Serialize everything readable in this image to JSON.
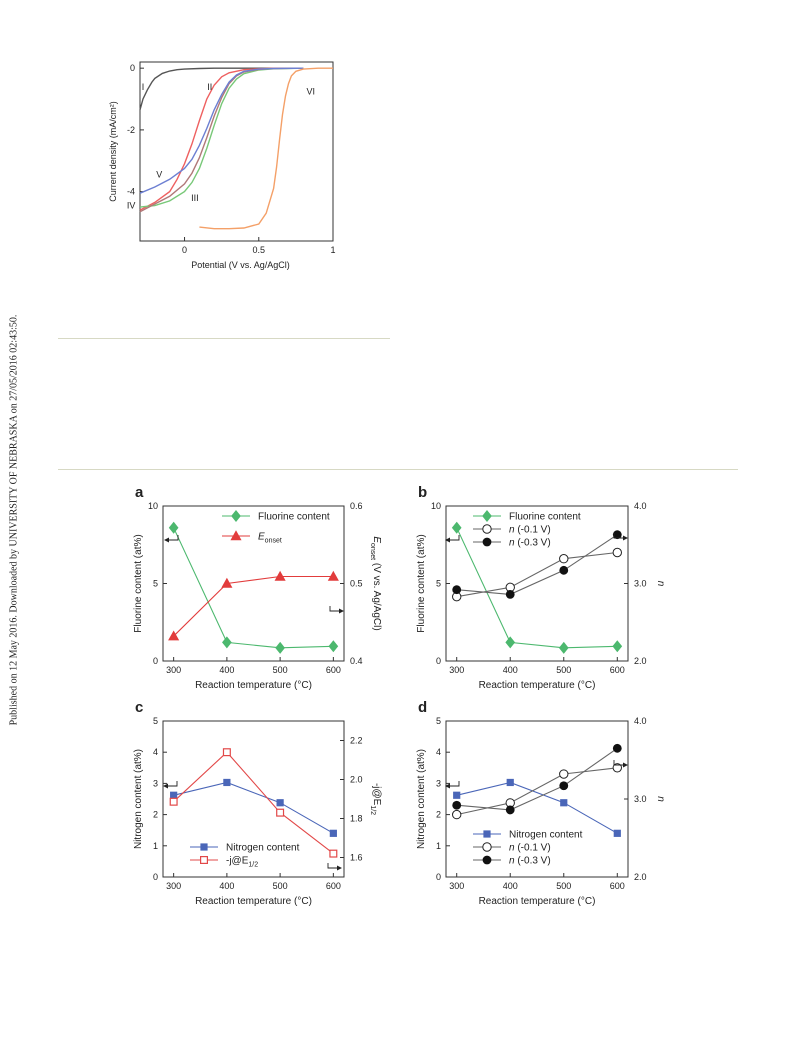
{
  "side_note": "Published on 12 May 2016. Downloaded by UNIVERSITY OF NEBRASKA on 27/05/2016 02:43:50.",
  "chart_data": [
    {
      "id": "top",
      "type": "line",
      "title": "",
      "xlabel": "Potential (V vs. Ag/AgCl)",
      "ylabel": "Current density (mA/cm²)",
      "xlim": [
        -0.3,
        1.0
      ],
      "ylim": [
        -5.6,
        0.2
      ],
      "xticks": [
        0,
        0.5,
        1
      ],
      "xtick_labels": [
        "0",
        "0.5",
        "1"
      ],
      "yticks": [
        0,
        -2,
        -4
      ],
      "ytick_labels": [
        "0",
        "-2",
        "-4"
      ],
      "series": [
        {
          "name": "I",
          "color": "#555555",
          "x": [
            -0.3,
            -0.28,
            -0.25,
            -0.22,
            -0.2,
            -0.15,
            -0.1,
            -0.05,
            0,
            0.1,
            0.2,
            0.3,
            0.5,
            0.8
          ],
          "y": [
            -1.35,
            -1.0,
            -0.7,
            -0.45,
            -0.33,
            -0.17,
            -0.09,
            -0.05,
            -0.03,
            -0.01,
            0,
            0,
            0,
            0
          ]
        },
        {
          "name": "II",
          "color": "#ee6060",
          "x": [
            -0.3,
            -0.2,
            -0.1,
            -0.05,
            0,
            0.05,
            0.1,
            0.15,
            0.2,
            0.25,
            0.3,
            0.4,
            0.5,
            0.6,
            0.8
          ],
          "y": [
            -4.6,
            -4.35,
            -4.0,
            -3.6,
            -3.1,
            -2.45,
            -1.7,
            -1.0,
            -0.55,
            -0.28,
            -0.15,
            -0.05,
            -0.02,
            0,
            0
          ]
        },
        {
          "name": "III",
          "color": "#78c878",
          "x": [
            -0.3,
            -0.2,
            -0.1,
            0,
            0.05,
            0.1,
            0.15,
            0.2,
            0.25,
            0.3,
            0.35,
            0.4,
            0.5,
            0.6,
            0.8
          ],
          "y": [
            -4.5,
            -4.45,
            -4.3,
            -4.0,
            -3.7,
            -3.25,
            -2.6,
            -1.85,
            -1.15,
            -0.65,
            -0.35,
            -0.18,
            -0.06,
            -0.02,
            0
          ]
        },
        {
          "name": "IV",
          "color": "#b07878",
          "x": [
            -0.3,
            -0.2,
            -0.1,
            0,
            0.05,
            0.1,
            0.15,
            0.2,
            0.25,
            0.3,
            0.35,
            0.4,
            0.5,
            0.6,
            0.8
          ],
          "y": [
            -4.65,
            -4.4,
            -4.15,
            -3.75,
            -3.4,
            -2.9,
            -2.25,
            -1.55,
            -0.95,
            -0.5,
            -0.25,
            -0.12,
            -0.04,
            -0.01,
            0
          ]
        },
        {
          "name": "V",
          "color": "#6c7fd2",
          "x": [
            -0.3,
            -0.2,
            -0.1,
            0,
            0.05,
            0.1,
            0.15,
            0.2,
            0.25,
            0.3,
            0.35,
            0.4,
            0.5,
            0.6,
            0.8
          ],
          "y": [
            -4.05,
            -3.85,
            -3.6,
            -3.25,
            -2.95,
            -2.5,
            -1.95,
            -1.35,
            -0.85,
            -0.45,
            -0.22,
            -0.1,
            -0.03,
            -0.01,
            0
          ]
        },
        {
          "name": "VI",
          "color": "#f4a068",
          "x": [
            0.1,
            0.2,
            0.3,
            0.4,
            0.5,
            0.55,
            0.6,
            0.62,
            0.64,
            0.66,
            0.68,
            0.7,
            0.72,
            0.75,
            0.8,
            0.9,
            1.0
          ],
          "y": [
            -5.15,
            -5.2,
            -5.2,
            -5.18,
            -5.05,
            -4.7,
            -3.9,
            -3.2,
            -2.3,
            -1.5,
            -0.9,
            -0.5,
            -0.25,
            -0.1,
            -0.03,
            0,
            0
          ]
        }
      ],
      "labels": [
        {
          "text": "I",
          "x": -0.28,
          "y": -0.7
        },
        {
          "text": "II",
          "x": 0.17,
          "y": -0.7
        },
        {
          "text": "III",
          "x": 0.07,
          "y": -4.3
        },
        {
          "text": "IV",
          "x": -0.36,
          "y": -4.55
        },
        {
          "text": "V",
          "x": -0.17,
          "y": -3.55
        },
        {
          "text": "VI",
          "x": 0.85,
          "y": -0.85
        }
      ]
    },
    {
      "id": "a",
      "type": "line",
      "panel_label": "a",
      "title": "",
      "xlabel": "Reaction temperature (°C)",
      "ylabel": "Fluorine content (at%)",
      "ylabel_right": "E_onset (V vs. Ag/AgCl)",
      "categories": [
        300,
        400,
        500,
        600
      ],
      "xlim": [
        280,
        620
      ],
      "ylim": [
        0,
        10
      ],
      "ylim_right": [
        0.4,
        0.6
      ],
      "yticks": [
        0,
        5,
        10
      ],
      "yticks_right": [
        0.4,
        0.5,
        0.6
      ],
      "ytick_labels_right": [
        "0.4",
        "0.5",
        "0.6"
      ],
      "series": [
        {
          "name": "Fluorine content",
          "axis": "left",
          "marker": "diamond",
          "color": "#4cb86e",
          "values": [
            8.6,
            1.2,
            0.85,
            0.95
          ]
        },
        {
          "name": "E_onset",
          "axis": "right",
          "marker": "triangle",
          "color": "#e23c3c",
          "values": [
            0.432,
            0.5,
            0.509,
            0.509
          ]
        }
      ]
    },
    {
      "id": "b",
      "type": "line",
      "panel_label": "b",
      "title": "",
      "xlabel": "Reaction temperature (°C)",
      "ylabel": "Fluorine content (at%)",
      "ylabel_right": "n",
      "categories": [
        300,
        400,
        500,
        600
      ],
      "xlim": [
        280,
        620
      ],
      "ylim": [
        0,
        10
      ],
      "ylim_right": [
        2.0,
        4.0
      ],
      "yticks": [
        0,
        5,
        10
      ],
      "yticks_right": [
        2.0,
        3.0,
        4.0
      ],
      "ytick_labels_right": [
        "2.0",
        "3.0",
        "4.0"
      ],
      "series": [
        {
          "name": "Fluorine content",
          "axis": "left",
          "marker": "diamond",
          "color": "#4cb86e",
          "values": [
            8.6,
            1.2,
            0.85,
            0.95
          ]
        },
        {
          "name": "n (-0.1 V)",
          "axis": "right",
          "marker": "open-circle",
          "color": "#666666",
          "values": [
            2.83,
            2.95,
            3.32,
            3.4
          ]
        },
        {
          "name": "n (-0.3 V)",
          "axis": "right",
          "marker": "filled-circle",
          "color": "#666666",
          "values": [
            2.92,
            2.86,
            3.17,
            3.63
          ]
        }
      ]
    },
    {
      "id": "c",
      "type": "line",
      "panel_label": "c",
      "title": "",
      "xlabel": "Reaction temperature (°C)",
      "ylabel": "Nitrogen content (at%)",
      "ylabel_right": "-j@E1/2",
      "categories": [
        300,
        400,
        500,
        600
      ],
      "xlim": [
        280,
        620
      ],
      "ylim": [
        0,
        5
      ],
      "ylim_right": [
        1.5,
        2.3
      ],
      "yticks": [
        0,
        1,
        2,
        3,
        4,
        5
      ],
      "yticks_right": [
        1.6,
        1.8,
        2.0,
        2.2
      ],
      "ytick_labels_right": [
        "1.6",
        "1.8",
        "2.0",
        "2.2"
      ],
      "series": [
        {
          "name": "Nitrogen content",
          "axis": "left",
          "marker": "filled-square",
          "color": "#4a66b8",
          "values": [
            2.62,
            3.03,
            2.38,
            1.4
          ]
        },
        {
          "name": "-j@E1/2",
          "axis": "right",
          "marker": "open-square",
          "color": "#e24848",
          "values": [
            1.886,
            2.14,
            1.83,
            1.62
          ]
        }
      ]
    },
    {
      "id": "d",
      "type": "line",
      "panel_label": "d",
      "title": "",
      "xlabel": "Reaction temperature (°C)",
      "ylabel": "Nitrogen content (at%)",
      "ylabel_right": "n",
      "categories": [
        300,
        400,
        500,
        600
      ],
      "xlim": [
        280,
        620
      ],
      "ylim": [
        0,
        5
      ],
      "ylim_right": [
        2.0,
        4.0
      ],
      "yticks": [
        0,
        1,
        2,
        3,
        4,
        5
      ],
      "yticks_right": [
        2.0,
        3.0,
        4.0
      ],
      "ytick_labels_right": [
        "2.0",
        "3.0",
        "4.0"
      ],
      "series": [
        {
          "name": "Nitrogen content",
          "axis": "left",
          "marker": "filled-square",
          "color": "#4a66b8",
          "values": [
            2.62,
            3.03,
            2.38,
            1.4
          ]
        },
        {
          "name": "n (-0.1 V)",
          "axis": "right",
          "marker": "open-circle",
          "color": "#666666",
          "values": [
            2.8,
            2.95,
            3.32,
            3.4
          ]
        },
        {
          "name": "n (-0.3 V)",
          "axis": "right",
          "marker": "filled-circle",
          "color": "#666666",
          "values": [
            2.92,
            2.86,
            3.17,
            3.65
          ]
        }
      ]
    }
  ]
}
